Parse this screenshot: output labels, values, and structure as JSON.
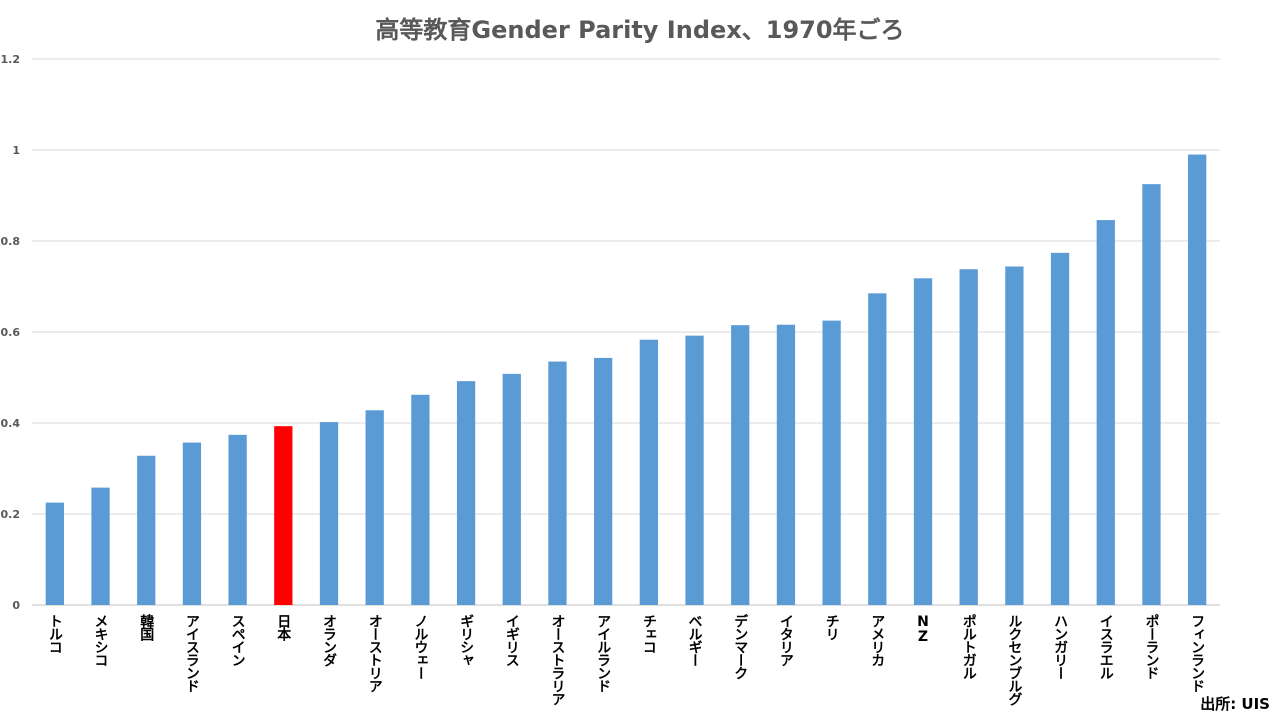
{
  "chart_data": {
    "type": "bar",
    "title": "高等教育Gender Parity Index、1970年ごろ",
    "xlabel": "",
    "ylabel": "",
    "ylim": [
      0,
      1.2
    ],
    "yticks": [
      "0",
      "0.2",
      "0.4",
      "0.6",
      "0.8",
      "1",
      "1.2"
    ],
    "grid": true,
    "legend": "none",
    "categories": [
      "トルコ",
      "メキシコ",
      "韓国",
      "アイスランド",
      "スペイン",
      "日本",
      "オランダ",
      "オーストリア",
      "ノルウェー",
      "ギリシャ",
      "イギリス",
      "オーストラリア",
      "アイルランド",
      "チェコ",
      "ベルギー",
      "デンマーク",
      "イタリア",
      "チリ",
      "アメリカ",
      "NZ",
      "ポルトガル",
      "ルクセンブルグ",
      "ハンガリー",
      "イスラエル",
      "ポーランド",
      "フィンランド"
    ],
    "values": [
      0.225,
      0.258,
      0.328,
      0.357,
      0.374,
      0.393,
      0.402,
      0.428,
      0.462,
      0.492,
      0.508,
      0.535,
      0.543,
      0.583,
      0.592,
      0.615,
      0.616,
      0.625,
      0.685,
      0.718,
      0.738,
      0.744,
      0.774,
      0.846,
      0.925,
      0.99
    ],
    "highlight_category": "日本",
    "bar_color": "#5B9BD5",
    "highlight_color": "#FF0000"
  },
  "source": "出所: UIS"
}
